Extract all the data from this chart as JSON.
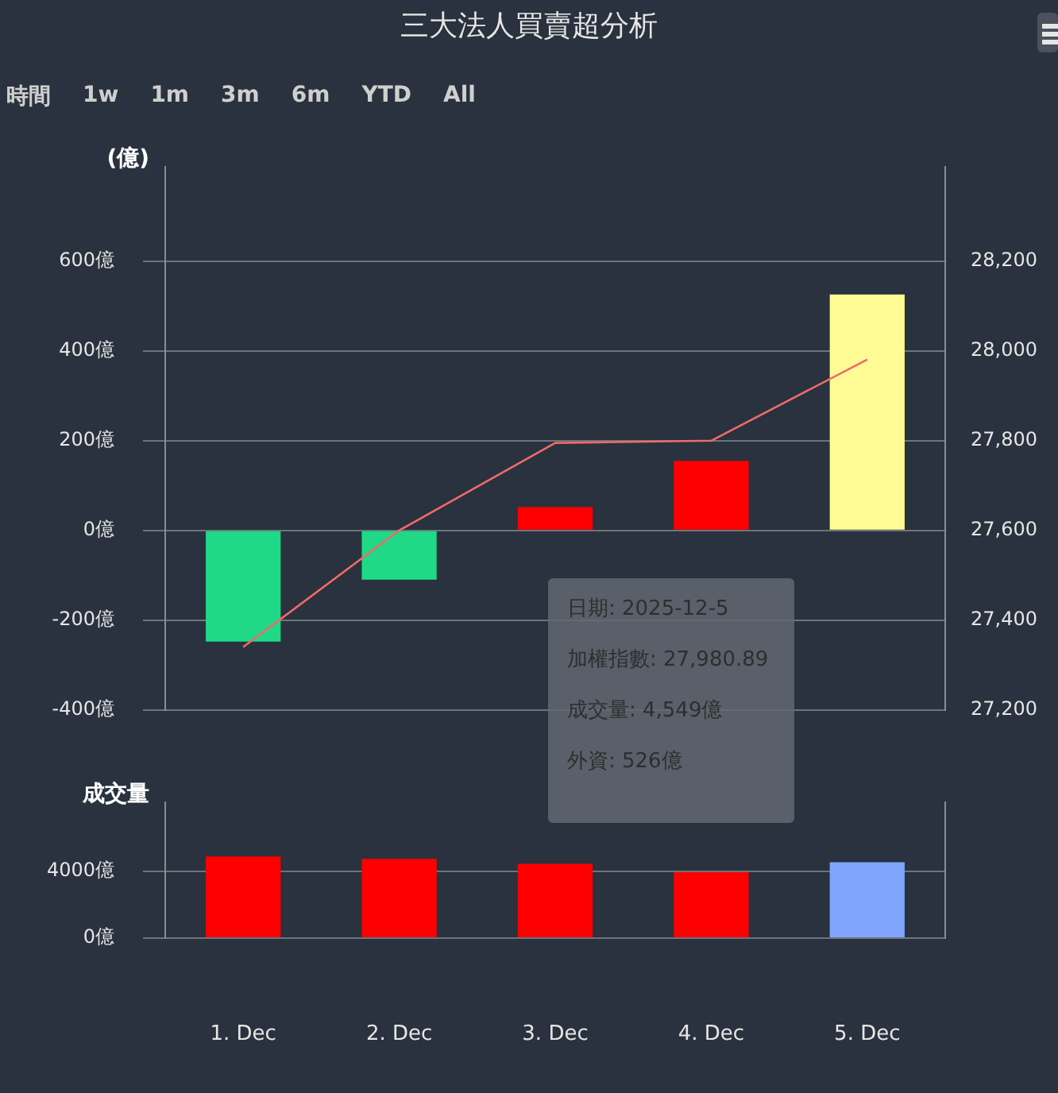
{
  "chart_data": [
    {
      "type": "bar",
      "title": "三大法人買賣超分析",
      "ylabel": "(億)",
      "categories": [
        null,
        null,
        null,
        null,
        null
      ],
      "annotations": [
        "時間",
        "1w",
        "1m",
        "3m",
        "6m",
        "YTD",
        "All"
      ],
      "series": [
        {
          "type": "bar",
          "colors": [
            "#1fd987",
            "#1fd987",
            "#ff0000",
            "#ff0000",
            "#fffb94"
          ],
          "values": [
            -248,
            -110,
            52,
            155,
            526
          ]
        },
        {
          "type": "line",
          "axis": "y2",
          "color": "#f06a6a",
          "values": [
            27340,
            27600,
            27795,
            27800,
            27980.89
          ]
        }
      ],
      "ylim": [
        -400,
        810
      ],
      "yticks": [
        {
          "value": -400,
          "label": "-400億"
        },
        {
          "value": -200,
          "label": "-200億"
        },
        {
          "value": 0,
          "label": "0億"
        },
        {
          "value": 200,
          "label": "200億"
        },
        {
          "value": 400,
          "label": "400億"
        },
        {
          "value": 600,
          "label": "600億"
        }
      ],
      "y2lim": [
        27200,
        28410
      ],
      "y2ticks": [
        {
          "value": 27200,
          "label": "27,200"
        },
        {
          "value": 27400,
          "label": "27,400"
        },
        {
          "value": 27600,
          "label": "27,600"
        },
        {
          "value": 27800,
          "label": "27,800"
        },
        {
          "value": 28000,
          "label": "28,000"
        },
        {
          "value": 28200,
          "label": "28,200"
        }
      ],
      "grid": "y",
      "tick_labels": "y",
      "marker": "none"
    },
    {
      "type": "bar",
      "ylabel": "成交量",
      "categories": [
        "1. Dec",
        "2. Dec",
        "3. Dec",
        "4. Dec",
        "5. Dec"
      ],
      "colors": [
        "#ff0000",
        "#ff0000",
        "#ff0000",
        "#ff0000",
        "#7fa5ff"
      ],
      "values": [
        4900,
        4750,
        4450,
        3950,
        4549
      ],
      "annotations": [
        "日期: 2025-12-5",
        "加權指數: 27,980.89",
        "成交量: 4,549億",
        "外資: 526億"
      ],
      "ylim": [
        0,
        8130
      ],
      "yticks": [
        {
          "value": 0,
          "label": "0億"
        },
        {
          "value": 4000,
          "label": "4000億"
        }
      ],
      "grid": "y"
    }
  ]
}
